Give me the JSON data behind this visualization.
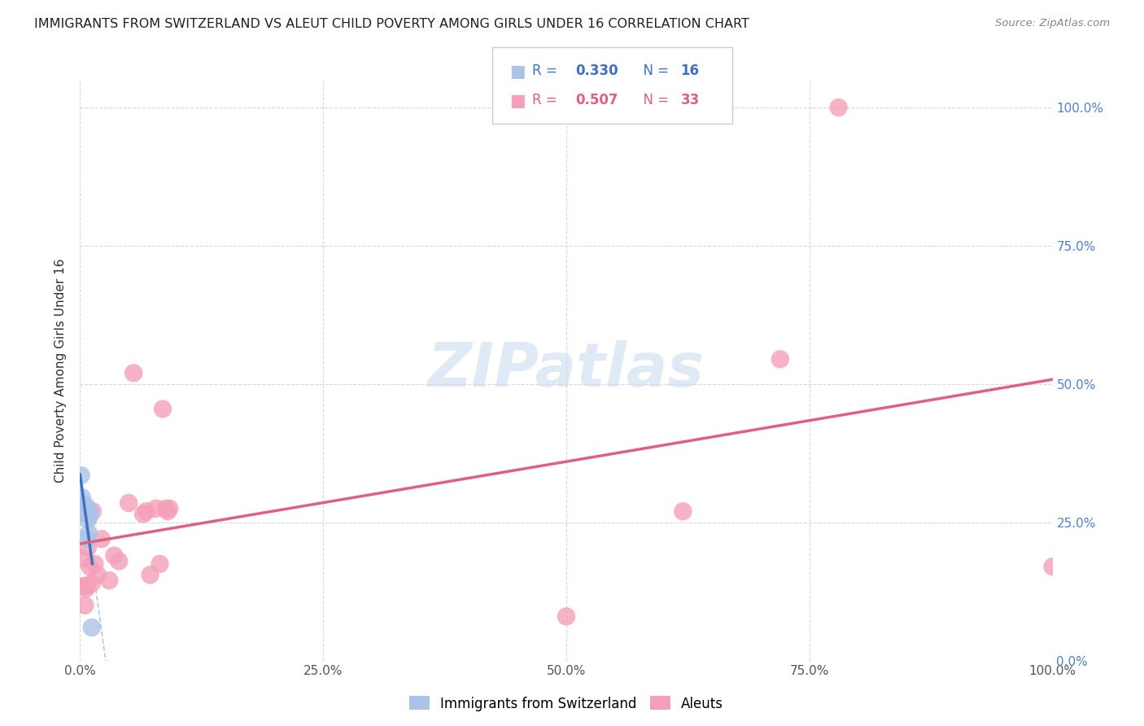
{
  "title": "IMMIGRANTS FROM SWITZERLAND VS ALEUT CHILD POVERTY AMONG GIRLS UNDER 16 CORRELATION CHART",
  "source": "Source: ZipAtlas.com",
  "ylabel": "Child Poverty Among Girls Under 16",
  "r_swiss": 0.33,
  "n_swiss": 16,
  "r_aleut": 0.507,
  "n_aleut": 33,
  "swiss_color": "#aac4e8",
  "aleut_color": "#f4a0b8",
  "swiss_line_color": "#4070c0",
  "aleut_line_color": "#e06080",
  "dashed_line_color": "#b0c8e8",
  "watermark_color": "#c8d8f0",
  "background_color": "#ffffff",
  "grid_color": "#d8d8d8",
  "title_color": "#202020",
  "right_axis_color": "#5080c8",
  "swiss_x": [
    0.001,
    0.002,
    0.002,
    0.003,
    0.004,
    0.005,
    0.005,
    0.006,
    0.006,
    0.007,
    0.008,
    0.008,
    0.009,
    0.01,
    0.01,
    0.012
  ],
  "swiss_y": [
    0.335,
    0.285,
    0.295,
    0.275,
    0.27,
    0.268,
    0.275,
    0.272,
    0.28,
    0.275,
    0.255,
    0.22,
    0.23,
    0.262,
    0.27,
    0.06
  ],
  "aleut_x": [
    0.002,
    0.003,
    0.004,
    0.005,
    0.006,
    0.006,
    0.007,
    0.008,
    0.01,
    0.012,
    0.013,
    0.015,
    0.018,
    0.022,
    0.03,
    0.035,
    0.04,
    0.05,
    0.055,
    0.065,
    0.068,
    0.072,
    0.078,
    0.082,
    0.085,
    0.088,
    0.09,
    0.092,
    0.5,
    0.62,
    0.72,
    0.78,
    1.0
  ],
  "aleut_y": [
    0.27,
    0.185,
    0.135,
    0.1,
    0.13,
    0.275,
    0.135,
    0.205,
    0.17,
    0.14,
    0.27,
    0.175,
    0.155,
    0.22,
    0.145,
    0.19,
    0.18,
    0.285,
    0.52,
    0.265,
    0.27,
    0.155,
    0.275,
    0.175,
    0.455,
    0.275,
    0.27,
    0.275,
    0.08,
    0.27,
    0.545,
    1.0,
    0.17
  ],
  "xmin": 0.0,
  "xmax": 1.0,
  "ymin": 0.0,
  "ymax": 1.05,
  "xtick_vals": [
    0.0,
    0.25,
    0.5,
    0.75,
    1.0
  ],
  "xtick_labels": [
    "0.0%",
    "25.0%",
    "50.0%",
    "75.0%",
    "100.0%"
  ],
  "ytick_vals": [
    0.0,
    0.25,
    0.5,
    0.75,
    1.0
  ],
  "ytick_labels": [
    "0.0%",
    "25.0%",
    "50.0%",
    "75.0%",
    "100.0%"
  ]
}
